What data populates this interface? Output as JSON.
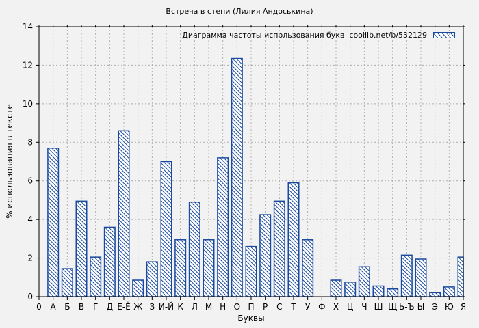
{
  "chart_data": {
    "type": "bar",
    "title": "Встреча в степи (Лилия Андоськина)",
    "legend_label": "Диаграмма частоты использования букв  coollib.net/b/532129",
    "xlabel": "Буквы",
    "ylabel": "% использования в тексте",
    "ylim": [
      0,
      14
    ],
    "ytick_step": 2,
    "grid": true,
    "legend_position": "top-right-inside",
    "categories": [
      "0",
      "А",
      "Б",
      "В",
      "Г",
      "Д",
      "Е-Ё",
      "Ж",
      "З",
      "И-Й",
      "К",
      "Л",
      "М",
      "Н",
      "О",
      "П",
      "Р",
      "С",
      "Т",
      "У",
      "Ф",
      "Х",
      "Ц",
      "Ч",
      "Ш",
      "Щ",
      "Ь-Ъ",
      "Ы",
      "Э",
      "Ю",
      "Я"
    ],
    "values": [
      0,
      7.7,
      1.45,
      4.95,
      2.05,
      3.6,
      8.6,
      0.85,
      1.8,
      7.0,
      2.95,
      4.9,
      2.95,
      7.2,
      12.35,
      2.6,
      4.25,
      4.95,
      5.9,
      2.95,
      0,
      0.85,
      0.75,
      1.55,
      0.55,
      0.4,
      2.15,
      1.95,
      0.2,
      0.5,
      2.05
    ],
    "bar_color": "#1a4a9f",
    "bar_fill_color": "#ffffff",
    "hatch_style": "diagonal-backslash",
    "grid_color": "#adadad",
    "axis_color": "#000000",
    "background_color": "#f2f2f2"
  }
}
